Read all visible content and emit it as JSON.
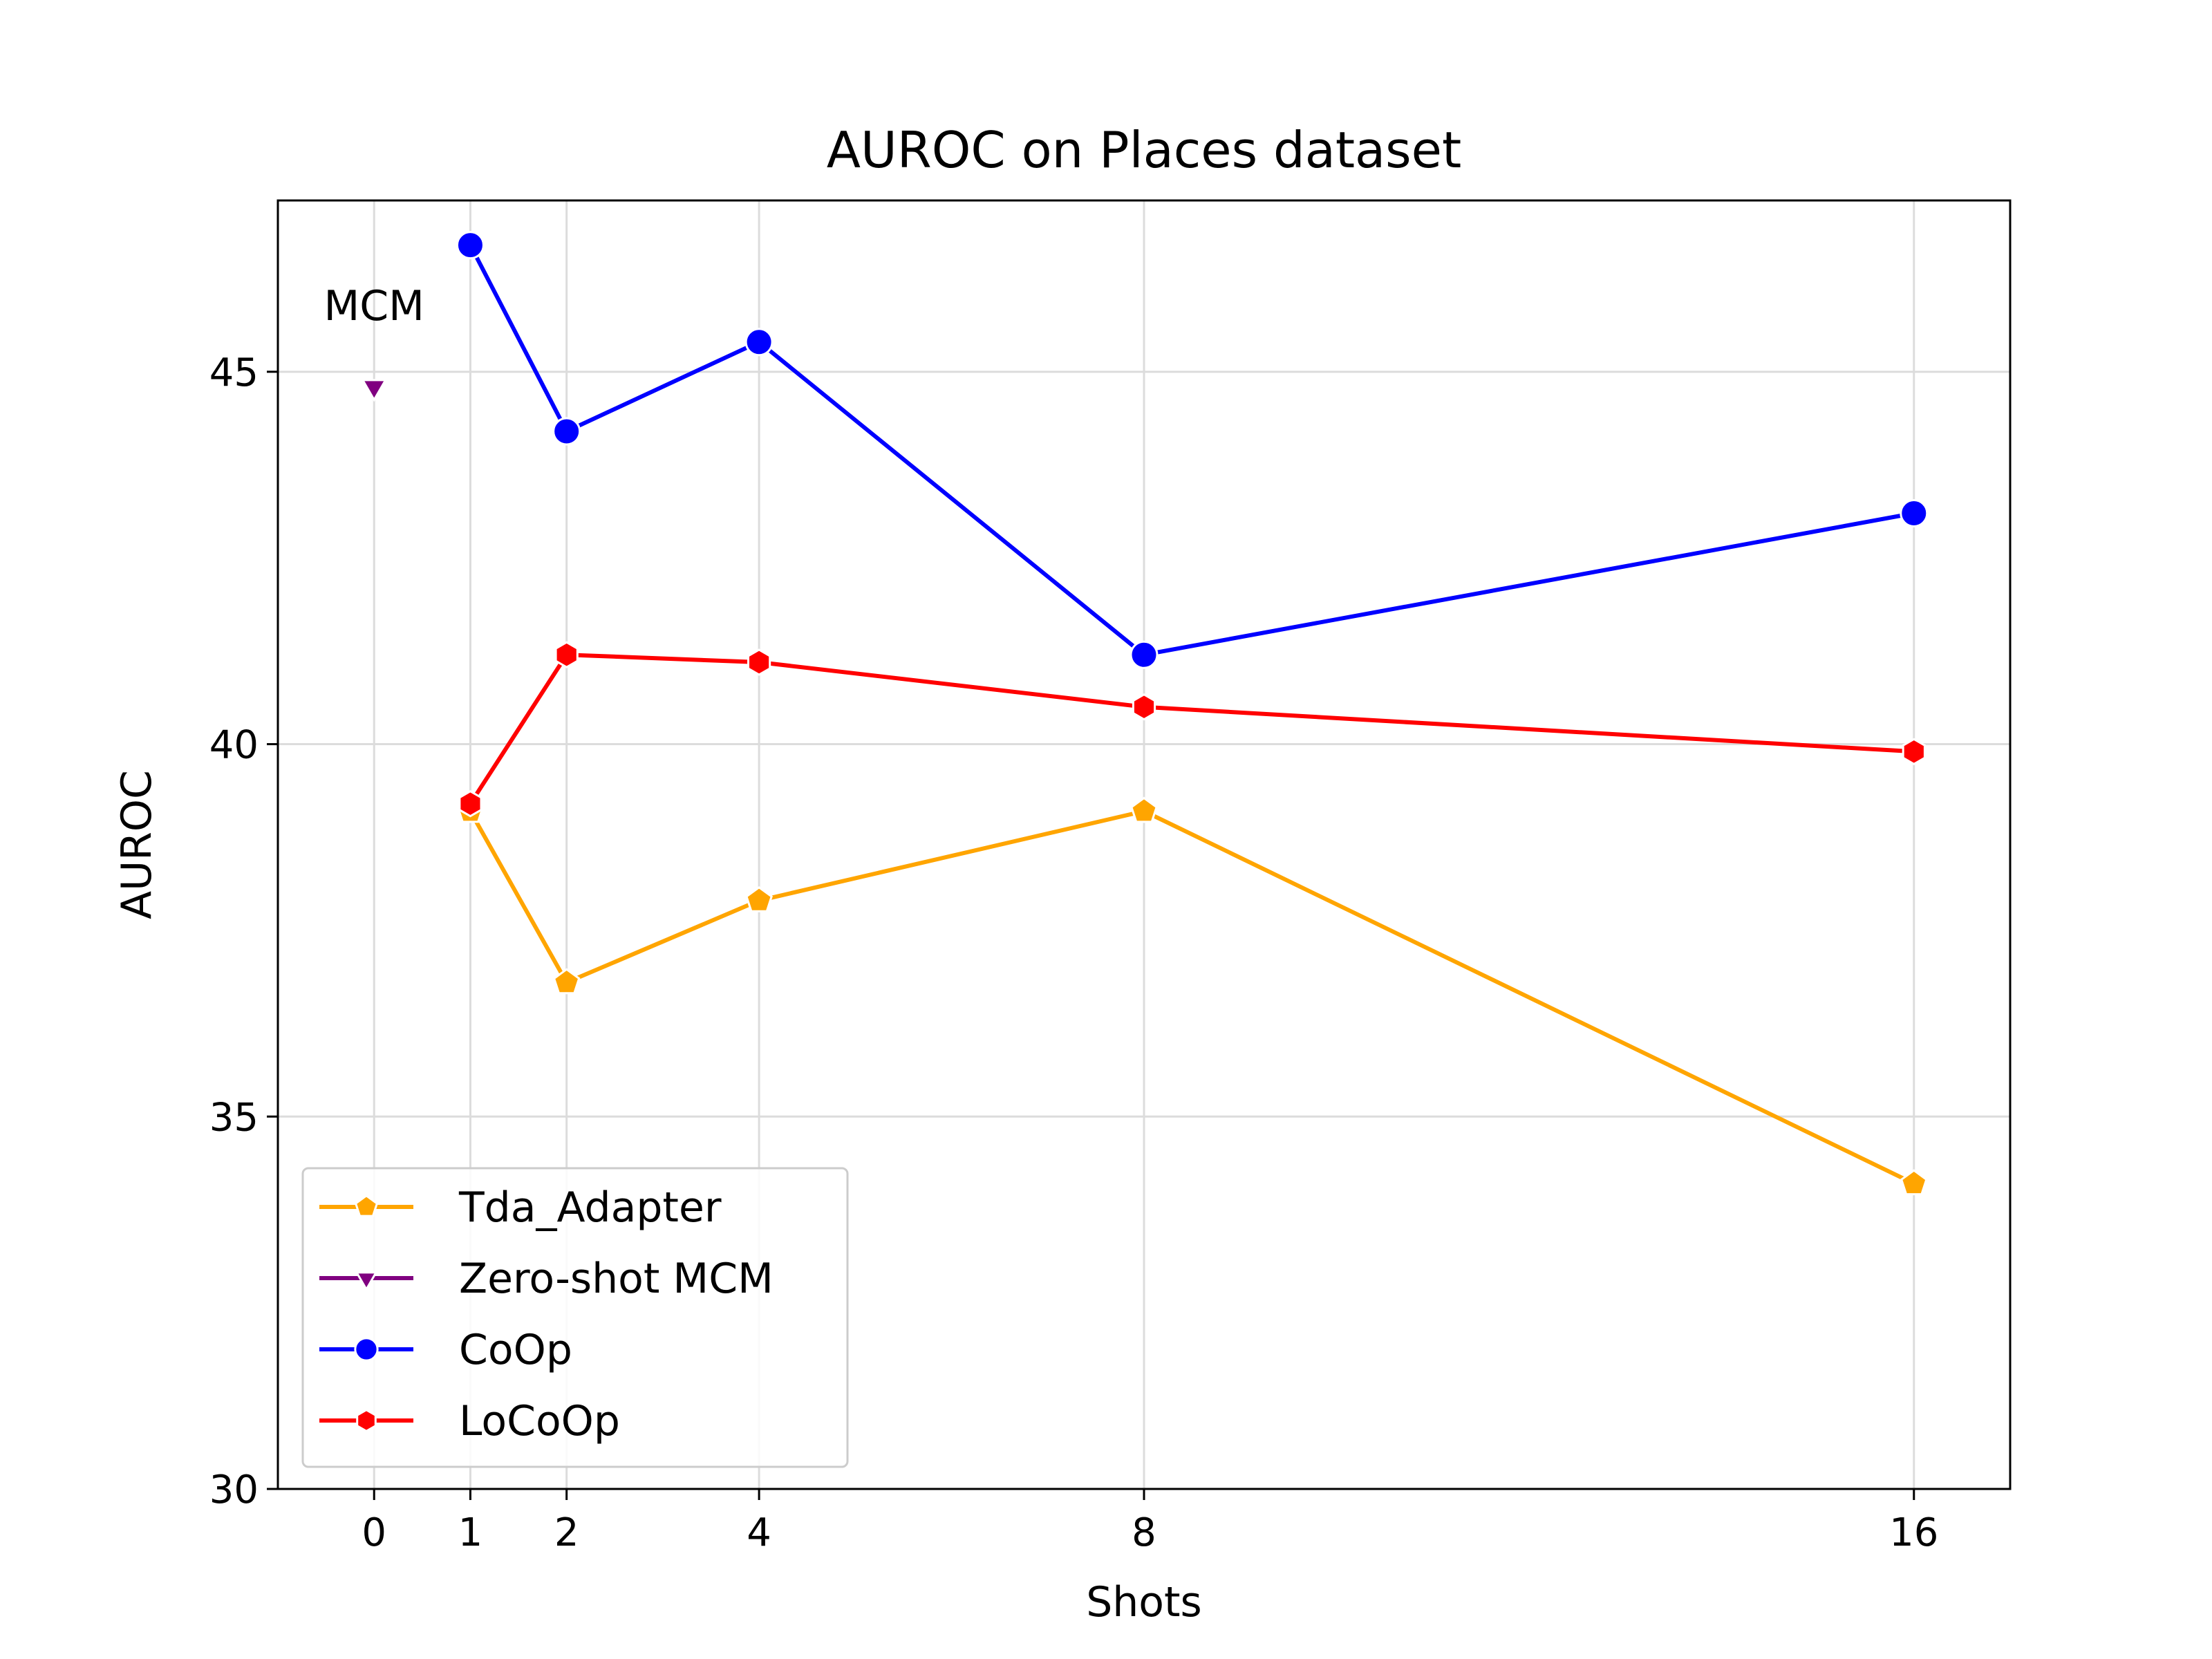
{
  "chart_data": {
    "type": "line",
    "title": "AUROC on Places dataset",
    "xlabel": "Shots",
    "ylabel": "AUROC",
    "xlim": [
      -1,
      17.0
    ],
    "ylim": [
      30,
      47.3
    ],
    "x_ticks": [
      0,
      1,
      2,
      4,
      8,
      16
    ],
    "x_tick_labels": [
      "0",
      "1",
      "2",
      "4",
      "8",
      "16"
    ],
    "y_ticks": [
      30,
      35,
      40,
      45
    ],
    "y_tick_labels": [
      "30",
      "35",
      "40",
      "45"
    ],
    "grid": true,
    "legend_position": "lower-left",
    "annotations": [
      {
        "text": "MCM",
        "x": 0,
        "y": 45.9
      }
    ],
    "series": [
      {
        "name": "Tda_Adapter",
        "color": "#ffa500",
        "marker": "pentagon",
        "x": [
          1,
          2,
          4,
          8,
          16
        ],
        "values": [
          39.1,
          36.8,
          37.9,
          39.1,
          34.1
        ]
      },
      {
        "name": "Zero-shot MCM",
        "color": "#800080",
        "marker": "triangle-down",
        "x": [
          0
        ],
        "values": [
          44.8
        ]
      },
      {
        "name": "CoOp",
        "color": "#0000ff",
        "marker": "circle",
        "x": [
          1,
          2,
          4,
          8,
          16
        ],
        "values": [
          46.7,
          44.2,
          45.4,
          41.2,
          43.1
        ]
      },
      {
        "name": "LoCoOp",
        "color": "#ff0000",
        "marker": "hexagon",
        "x": [
          1,
          2,
          4,
          8,
          16
        ],
        "values": [
          39.2,
          41.2,
          41.1,
          40.5,
          39.9
        ]
      }
    ]
  }
}
